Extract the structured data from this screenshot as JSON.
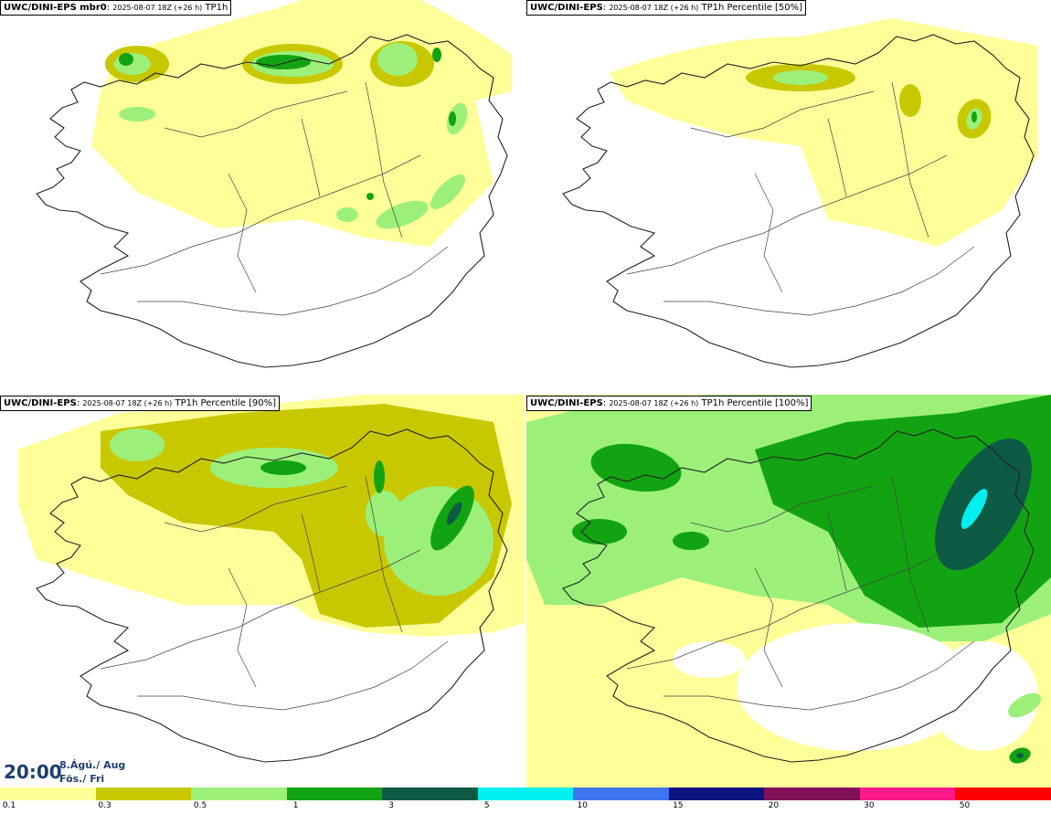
{
  "panels": [
    {
      "model": "UWC/DINI-EPS mbr0",
      "sep": ":",
      "run": "2025-08-07 18Z (+26 h)",
      "field": "TP1h"
    },
    {
      "model": "UWC/DINI-EPS",
      "sep": ":",
      "run": "2025-08-07 18Z (+26 h)",
      "field": "TP1h Percentile [50%]"
    },
    {
      "model": "UWC/DINI-EPS",
      "sep": ":",
      "run": "2025-08-07 18Z (+26 h)",
      "field": "TP1h Percentile [90%]"
    },
    {
      "model": "UWC/DINI-EPS",
      "sep": ":",
      "run": "2025-08-07 18Z (+26 h)",
      "field": "TP1h Percentile [100%]"
    }
  ],
  "valid_time": {
    "time": "20:00",
    "date": "8.Ágú./ Aug",
    "day": "Fös./ Fri"
  },
  "legend": {
    "colors": [
      "#ffff99",
      "#c8c800",
      "#9cf07a",
      "#12a312",
      "#0d5a45",
      "#00f0f0",
      "#3f74f0",
      "#0c1480",
      "#801057",
      "#ff1a8c",
      "#ff0000"
    ],
    "labels": [
      "0.1",
      "0.3",
      "0.5",
      "1",
      "3",
      "5",
      "10",
      "15",
      "20",
      "30",
      "50"
    ]
  }
}
